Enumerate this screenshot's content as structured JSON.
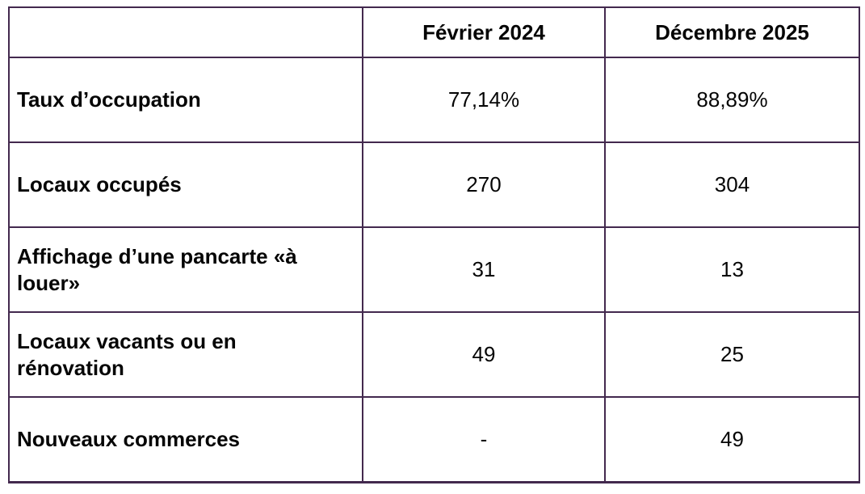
{
  "table": {
    "border_color": "#43294e",
    "columns": [
      "",
      "Février 2024",
      "Décembre 2025"
    ],
    "rows": [
      {
        "label": "Taux d’occupation",
        "values": [
          "77,14%",
          "88,89%"
        ]
      },
      {
        "label": "Locaux occupés",
        "values": [
          "270",
          "304"
        ]
      },
      {
        "label": "Affichage d’une pancarte «à louer»",
        "values": [
          "31",
          "13"
        ]
      },
      {
        "label": "Locaux vacants ou en rénovation",
        "values": [
          "49",
          "25"
        ]
      },
      {
        "label": "Nouveaux commerces",
        "values": [
          "-",
          "49"
        ]
      }
    ]
  },
  "chart_data": {
    "type": "table",
    "columns": [
      "",
      "Février 2024",
      "Décembre 2025"
    ],
    "rows": [
      [
        "Taux d’occupation",
        "77,14%",
        "88,89%"
      ],
      [
        "Locaux occupés",
        "270",
        "304"
      ],
      [
        "Affichage d’une pancarte «à louer»",
        "31",
        "13"
      ],
      [
        "Locaux vacants ou en rénovation",
        "49",
        "25"
      ],
      [
        "Nouveaux commerces",
        "-",
        "49"
      ]
    ]
  }
}
